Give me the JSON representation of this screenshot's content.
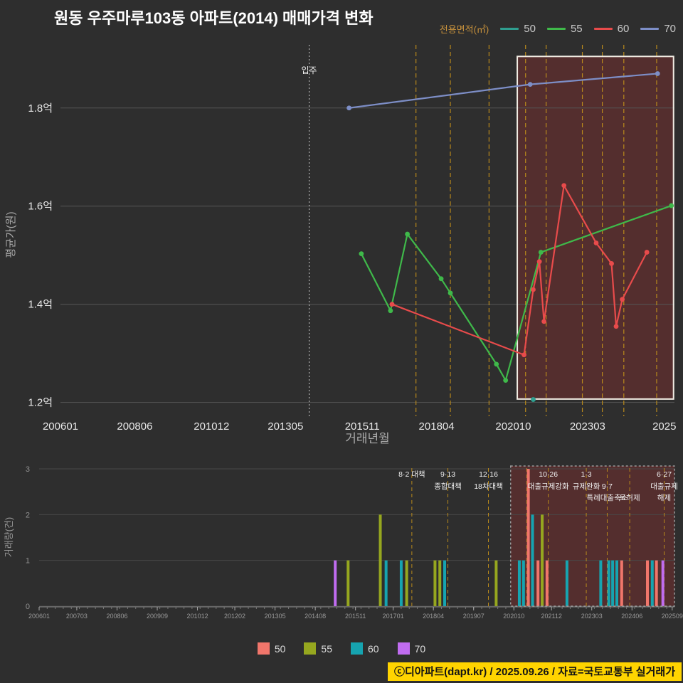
{
  "title": "원동 우주마루103동 아파트(2014) 매매가격 변화",
  "footer": "ⓒ디아파트(dapt.kr) / 2025.09.26 / 자료=국토교통부 실거래가",
  "colors": {
    "background": "#2e2e2e",
    "grid": "#555555",
    "policy_line": "#b8891c",
    "highlight_fill": "#8b3030",
    "highlight_border_top": "#f2ede4",
    "highlight_border_bottom": "#999999",
    "move_in_line": "#cccccc",
    "footer_bg": "#ffd400"
  },
  "legend_top": {
    "title": "전용면적(㎡)",
    "items": [
      {
        "label": "50",
        "color": "#2f9e8f"
      },
      {
        "label": "55",
        "color": "#3fb94a"
      },
      {
        "label": "60",
        "color": "#e84b4b"
      },
      {
        "label": "70",
        "color": "#7d8ec7"
      }
    ]
  },
  "legend_bottom": {
    "items": [
      {
        "label": "50",
        "color": "#f1766b"
      },
      {
        "label": "55",
        "color": "#96a71f"
      },
      {
        "label": "60",
        "color": "#16a4b0"
      },
      {
        "label": "70",
        "color": "#c06cf0"
      }
    ]
  },
  "chart_data": [
    {
      "type": "line",
      "xlabel": "거래년월",
      "ylabel": "평균가(원)",
      "xlim": [
        2006.0,
        2026.0
      ],
      "ylim": [
        1.172,
        1.933
      ],
      "yticks": [
        {
          "v": 1.2,
          "label": "1.2억"
        },
        {
          "v": 1.4,
          "label": "1.4억"
        },
        {
          "v": 1.6,
          "label": "1.6억"
        },
        {
          "v": 1.8,
          "label": "1.8억"
        }
      ],
      "xticks": [
        {
          "v": 2006.0,
          "label": "200601"
        },
        {
          "v": 2008.42,
          "label": "200806"
        },
        {
          "v": 2010.92,
          "label": "201012"
        },
        {
          "v": 2013.33,
          "label": "201305"
        },
        {
          "v": 2015.83,
          "label": "201511"
        },
        {
          "v": 2018.25,
          "label": "201804"
        },
        {
          "v": 2020.75,
          "label": "202010"
        },
        {
          "v": 2023.17,
          "label": "202303"
        },
        {
          "v": 2025.67,
          "label": "2025"
        }
      ],
      "move_in": {
        "t": 2014.1,
        "label": "입주"
      },
      "policy_lines": [
        2017.58,
        2018.7,
        2019.96,
        2021.15,
        2021.82,
        2023.0,
        2023.65,
        2024.35,
        2025.42
      ],
      "highlight": {
        "t1": 2020.88,
        "t2": 2025.97,
        "p1": 1.207,
        "p2": 1.905
      },
      "series": [
        {
          "name": "50",
          "color": "#2f9e8f",
          "points": [
            [
              2021.4,
              1.206
            ]
          ]
        },
        {
          "name": "55",
          "color": "#3fb94a",
          "points": [
            [
              2015.8,
              1.503
            ],
            [
              2016.75,
              1.387
            ],
            [
              2017.3,
              1.543
            ],
            [
              2018.4,
              1.452
            ],
            [
              2018.7,
              1.423
            ],
            [
              2020.2,
              1.278
            ],
            [
              2020.5,
              1.245
            ],
            [
              2021.65,
              1.506
            ],
            [
              2025.9,
              1.601
            ]
          ]
        },
        {
          "name": "60",
          "color": "#e84b4b",
          "points": [
            [
              2016.8,
              1.4
            ],
            [
              2021.1,
              1.297
            ],
            [
              2021.4,
              1.43
            ],
            [
              2021.6,
              1.487
            ],
            [
              2021.75,
              1.365
            ],
            [
              2022.4,
              1.642
            ],
            [
              2023.45,
              1.525
            ],
            [
              2023.95,
              1.483
            ],
            [
              2024.1,
              1.355
            ],
            [
              2024.3,
              1.41
            ],
            [
              2025.1,
              1.506
            ]
          ]
        },
        {
          "name": "70",
          "color": "#7d8ec7",
          "points": [
            [
              2015.4,
              1.8
            ],
            [
              2021.3,
              1.848
            ],
            [
              2025.45,
              1.87
            ]
          ]
        }
      ]
    },
    {
      "type": "bar",
      "ylabel": "거래량(건)",
      "xlim": [
        2006.0,
        2025.74
      ],
      "ylim": [
        0,
        3
      ],
      "yticks": [
        {
          "v": 0,
          "label": "0"
        },
        {
          "v": 1,
          "label": "1"
        },
        {
          "v": 2,
          "label": "2"
        },
        {
          "v": 3,
          "label": "3"
        }
      ],
      "xticks": [
        {
          "v": 2006.0,
          "label": "200601"
        },
        {
          "v": 2007.17,
          "label": "200703"
        },
        {
          "v": 2008.42,
          "label": "200806"
        },
        {
          "v": 2009.67,
          "label": "200909"
        },
        {
          "v": 2010.92,
          "label": "201012"
        },
        {
          "v": 2012.08,
          "label": "201202"
        },
        {
          "v": 2013.33,
          "label": "201305"
        },
        {
          "v": 2014.58,
          "label": "201408"
        },
        {
          "v": 2015.83,
          "label": "201511"
        },
        {
          "v": 2017.0,
          "label": "201701"
        },
        {
          "v": 2018.25,
          "label": "201804"
        },
        {
          "v": 2019.5,
          "label": "201907"
        },
        {
          "v": 2020.75,
          "label": "202010"
        },
        {
          "v": 2021.92,
          "label": "202112"
        },
        {
          "v": 2023.17,
          "label": "202303"
        },
        {
          "v": 2024.42,
          "label": "202406"
        },
        {
          "v": 2025.67,
          "label": "202509"
        }
      ],
      "policy_lines": [
        2017.58,
        2018.7,
        2019.96,
        2021.15,
        2021.82,
        2023.0,
        2023.65,
        2024.35,
        2025.42
      ],
      "highlight": {
        "t1": 2020.65,
        "t2": 2025.74
      },
      "bars": [
        {
          "t": 2015.2,
          "count": 1,
          "area": "70"
        },
        {
          "t": 2015.6,
          "count": 1,
          "area": "55"
        },
        {
          "t": 2016.6,
          "count": 2,
          "area": "55"
        },
        {
          "t": 2016.78,
          "count": 1,
          "area": "60"
        },
        {
          "t": 2017.25,
          "count": 1,
          "area": "60"
        },
        {
          "t": 2017.42,
          "count": 1,
          "area": "55"
        },
        {
          "t": 2018.3,
          "count": 1,
          "area": "55"
        },
        {
          "t": 2018.45,
          "count": 1,
          "area": "55"
        },
        {
          "t": 2018.6,
          "count": 1,
          "area": "60"
        },
        {
          "t": 2020.2,
          "count": 1,
          "area": "55"
        },
        {
          "t": 2020.92,
          "count": 1,
          "area": "60"
        },
        {
          "t": 2021.05,
          "count": 1,
          "area": "60"
        },
        {
          "t": 2021.2,
          "count": 3,
          "area": "50"
        },
        {
          "t": 2021.33,
          "count": 2,
          "area": "60"
        },
        {
          "t": 2021.5,
          "count": 1,
          "area": "50"
        },
        {
          "t": 2021.63,
          "count": 2,
          "area": "55"
        },
        {
          "t": 2021.78,
          "count": 1,
          "area": "50"
        },
        {
          "t": 2022.4,
          "count": 1,
          "area": "60"
        },
        {
          "t": 2023.45,
          "count": 1,
          "area": "60"
        },
        {
          "t": 2023.7,
          "count": 1,
          "area": "60"
        },
        {
          "t": 2023.82,
          "count": 1,
          "area": "60"
        },
        {
          "t": 2023.95,
          "count": 1,
          "area": "60"
        },
        {
          "t": 2024.1,
          "count": 1,
          "area": "50"
        },
        {
          "t": 2024.9,
          "count": 1,
          "area": "50"
        },
        {
          "t": 2025.05,
          "count": 1,
          "area": "60"
        },
        {
          "t": 2025.18,
          "count": 1,
          "area": "50"
        },
        {
          "t": 2025.38,
          "count": 1,
          "area": "70"
        }
      ],
      "annotations": [
        {
          "t": 2017.58,
          "row": 0,
          "lines": [
            "8·2 대책"
          ]
        },
        {
          "t": 2018.7,
          "row": 0,
          "lines": [
            "9·13",
            "종합대책"
          ]
        },
        {
          "t": 2019.96,
          "row": 0,
          "lines": [
            "12·16",
            "18차대책"
          ]
        },
        {
          "t": 2021.82,
          "row": 0,
          "lines": [
            "10·26",
            "대출규제강화"
          ]
        },
        {
          "t": 2023.0,
          "row": 0,
          "lines": [
            "1·3",
            "규제완화"
          ]
        },
        {
          "t": 2023.65,
          "row": 1,
          "lines": [
            "9·7",
            "특례대출축소"
          ]
        },
        {
          "t": 2024.35,
          "row": 2,
          "lines": [
            "토허제"
          ]
        },
        {
          "t": 2025.42,
          "row": 0,
          "lines": [
            "6·27",
            "대출규제",
            "해제"
          ]
        }
      ]
    }
  ]
}
